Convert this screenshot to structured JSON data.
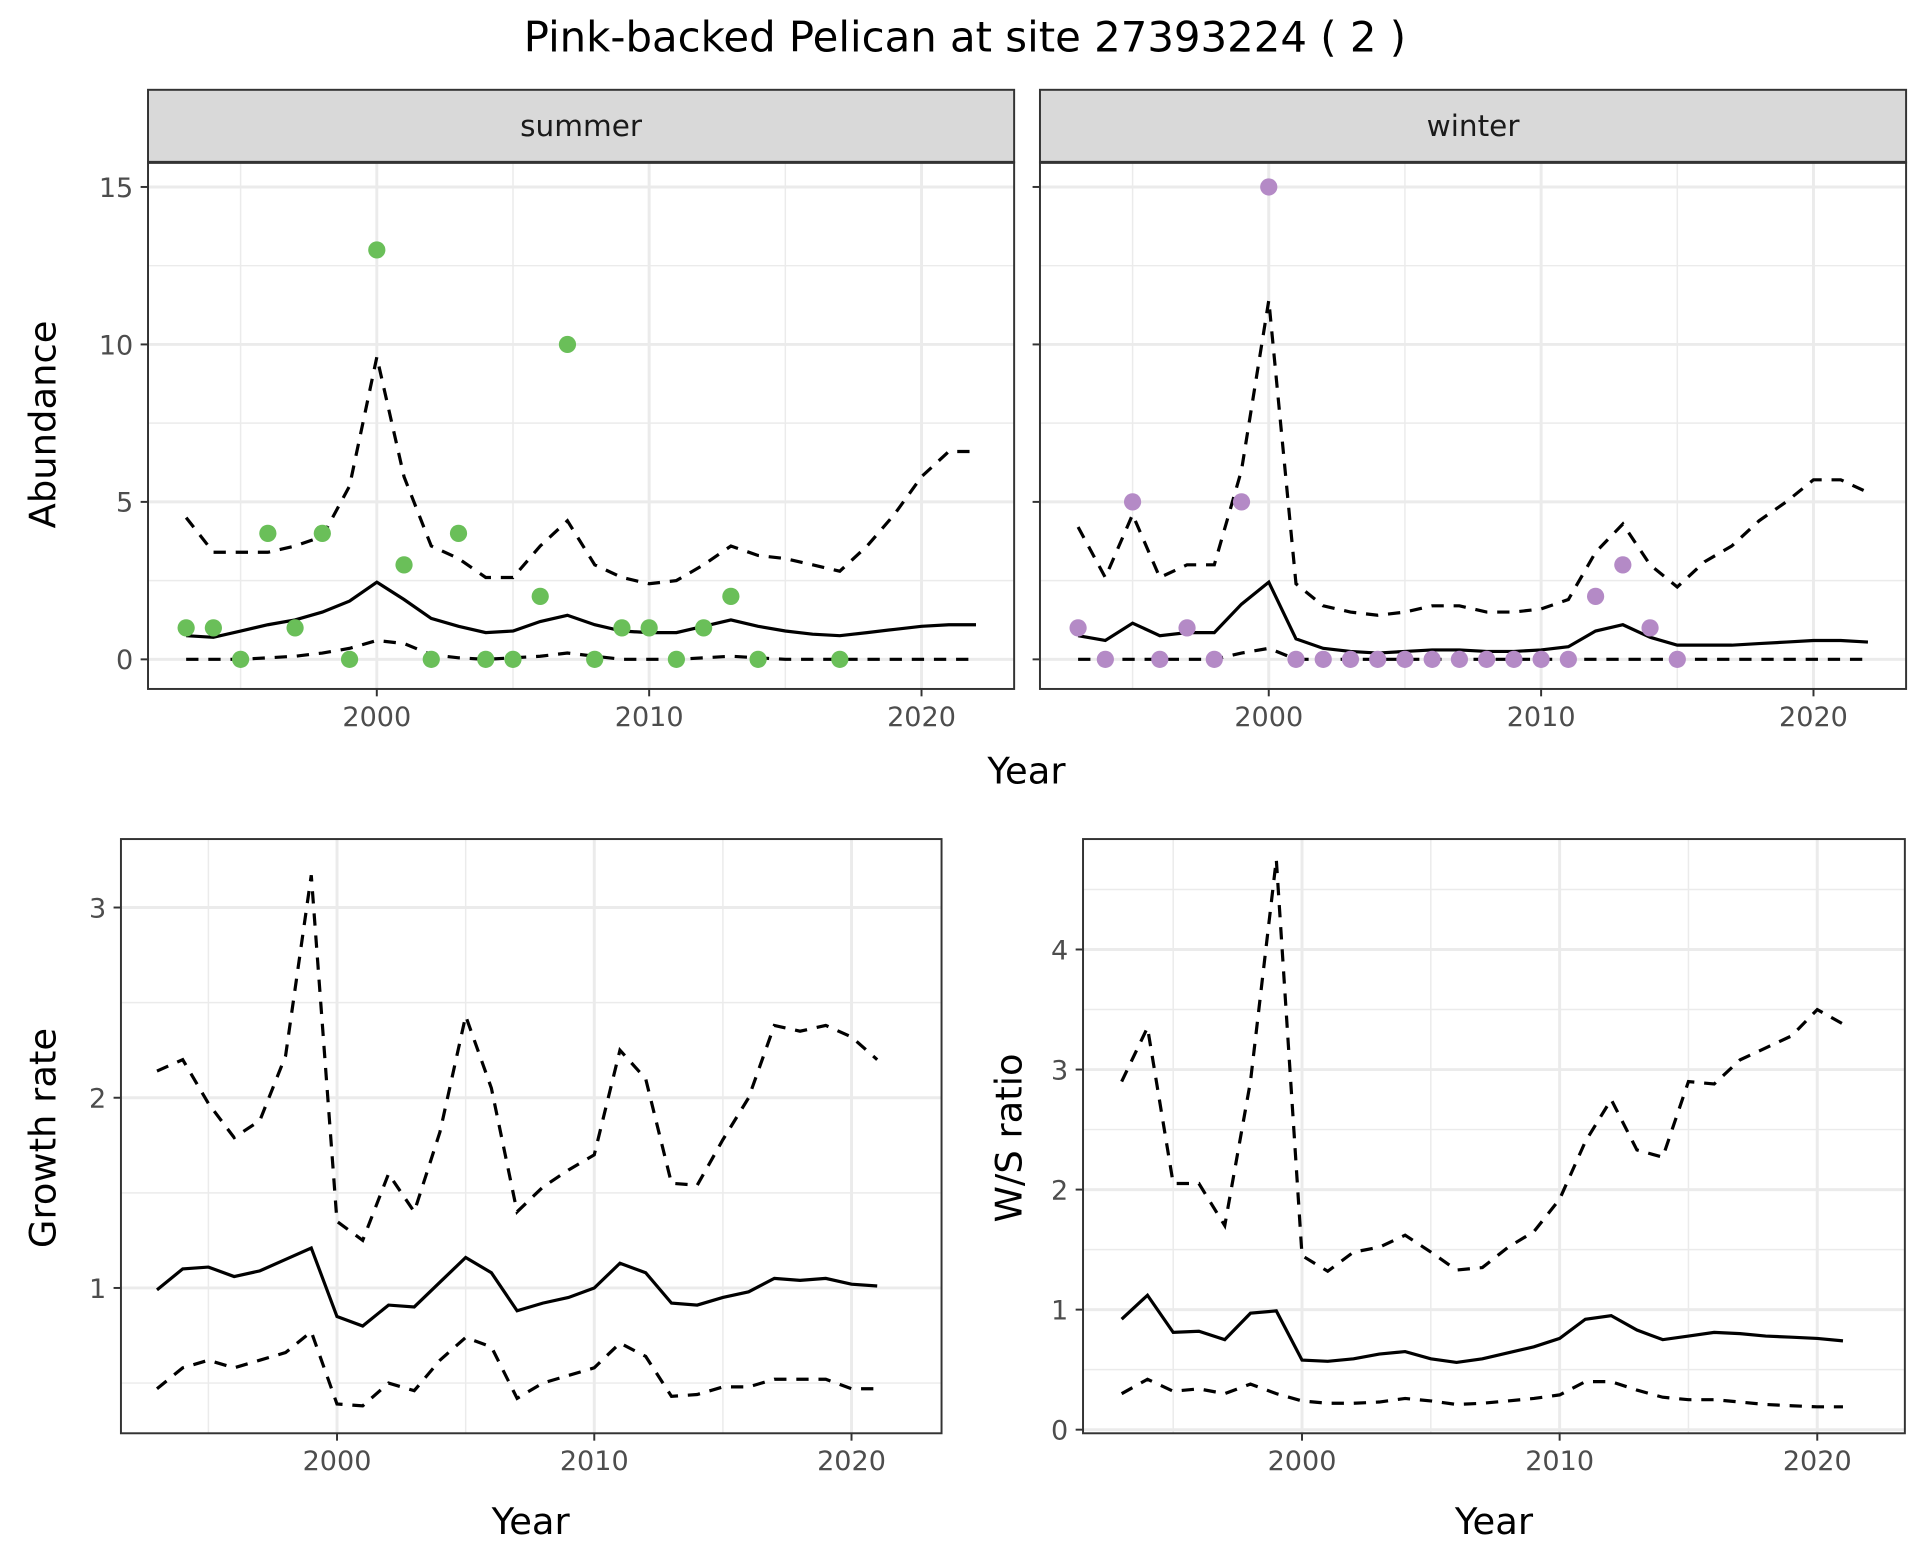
{
  "title": "Pink-backed Pelican at site 27393224 ( 2 )",
  "colors": {
    "summer": "#6abf59",
    "winter": "#b48ac6",
    "line": "#000000",
    "strip_bg": "#d9d9d9",
    "grid": "#ebebeb"
  },
  "chart_data": [
    {
      "type": "line+scatter",
      "facet": "summer",
      "xlabel": "Year",
      "ylabel": "Abundance",
      "xlim": [
        1991.6,
        2023.4
      ],
      "ylim": [
        -0.94,
        15.78
      ],
      "xticks": [
        "2000",
        "2010",
        "2020"
      ],
      "yticks": [
        "0",
        "5",
        "10",
        "15"
      ],
      "grid": true,
      "points": {
        "x": [
          1993,
          1994,
          1995,
          1996,
          1997,
          1998,
          1999,
          2000,
          2001,
          2002,
          2003,
          2004,
          2005,
          2006,
          2007,
          2008,
          2009,
          2010,
          2011,
          2012,
          2013,
          2014,
          2017
        ],
        "y": [
          1,
          1,
          0,
          4,
          1,
          4,
          0,
          13,
          3,
          0,
          4,
          0,
          0,
          2,
          10,
          0,
          1,
          1,
          0,
          1,
          2,
          0,
          0
        ]
      },
      "x": [
        1993,
        1994,
        1995,
        1996,
        1997,
        1998,
        1999,
        2000,
        2001,
        2002,
        2003,
        2004,
        2005,
        2006,
        2007,
        2008,
        2009,
        2010,
        2011,
        2012,
        2013,
        2014,
        2015,
        2016,
        2017,
        2018,
        2019,
        2020,
        2021,
        2022
      ],
      "mean": [
        0.75,
        0.7,
        0.9,
        1.1,
        1.25,
        1.5,
        1.85,
        2.45,
        1.9,
        1.3,
        1.05,
        0.85,
        0.9,
        1.2,
        1.4,
        1.1,
        0.9,
        0.85,
        0.85,
        1.05,
        1.25,
        1.05,
        0.9,
        0.8,
        0.75,
        0.85,
        0.95,
        1.05,
        1.1,
        1.1
      ],
      "upper": [
        4.5,
        3.4,
        3.4,
        3.4,
        3.6,
        3.9,
        5.5,
        9.6,
        5.8,
        3.6,
        3.2,
        2.6,
        2.6,
        3.6,
        4.4,
        3.0,
        2.6,
        2.4,
        2.5,
        3.0,
        3.6,
        3.3,
        3.2,
        3.0,
        2.8,
        3.6,
        4.6,
        5.8,
        6.6,
        6.6
      ],
      "lower": [
        0,
        0,
        0,
        0.05,
        0.1,
        0.2,
        0.35,
        0.6,
        0.5,
        0.15,
        0.05,
        0,
        0.05,
        0.1,
        0.2,
        0.1,
        0,
        0,
        0,
        0.05,
        0.1,
        0.05,
        0,
        0,
        0,
        0,
        0,
        0,
        0,
        0
      ]
    },
    {
      "type": "line+scatter",
      "facet": "winter",
      "xlabel": "Year",
      "ylabel": "Abundance",
      "xlim": [
        1991.6,
        2023.4
      ],
      "ylim": [
        -0.94,
        15.78
      ],
      "xticks": [
        "2000",
        "2010",
        "2020"
      ],
      "yticks": [],
      "grid": true,
      "points": {
        "x": [
          1993,
          1994,
          1995,
          1996,
          1997,
          1998,
          1999,
          2000,
          2001,
          2002,
          2003,
          2004,
          2005,
          2006,
          2007,
          2008,
          2009,
          2010,
          2011,
          2012,
          2013,
          2014,
          2015
        ],
        "y": [
          1,
          0,
          5,
          0,
          1,
          0,
          5,
          15,
          0,
          0,
          0,
          0,
          0,
          0,
          0,
          0,
          0,
          0,
          0,
          2,
          3,
          1,
          0
        ]
      },
      "x": [
        1993,
        1994,
        1995,
        1996,
        1997,
        1998,
        1999,
        2000,
        2001,
        2002,
        2003,
        2004,
        2005,
        2006,
        2007,
        2008,
        2009,
        2010,
        2011,
        2012,
        2013,
        2014,
        2015,
        2016,
        2017,
        2018,
        2019,
        2020,
        2021,
        2022
      ],
      "mean": [
        0.75,
        0.6,
        1.15,
        0.75,
        0.85,
        0.85,
        1.75,
        2.45,
        0.65,
        0.35,
        0.25,
        0.2,
        0.25,
        0.3,
        0.3,
        0.25,
        0.25,
        0.3,
        0.4,
        0.9,
        1.1,
        0.7,
        0.45,
        0.45,
        0.45,
        0.5,
        0.55,
        0.6,
        0.6,
        0.55
      ],
      "upper": [
        4.2,
        2.6,
        4.6,
        2.6,
        3.0,
        3.0,
        6.0,
        11.4,
        2.4,
        1.7,
        1.5,
        1.4,
        1.5,
        1.7,
        1.7,
        1.5,
        1.5,
        1.6,
        1.9,
        3.4,
        4.3,
        3.0,
        2.3,
        3.1,
        3.6,
        4.4,
        5.0,
        5.7,
        5.7,
        5.3
      ],
      "lower": [
        0,
        0,
        0,
        0,
        0,
        0,
        0.2,
        0.35,
        0,
        0,
        0,
        0,
        0,
        0,
        0,
        0,
        0,
        0,
        0,
        0,
        0,
        0,
        0,
        0,
        0,
        0,
        0,
        0,
        0,
        0
      ]
    },
    {
      "type": "line",
      "xlabel": "Year",
      "ylabel": "Growth rate",
      "xlim": [
        1991.6,
        2023.5
      ],
      "ylim": [
        0.236,
        3.36
      ],
      "xticks": [
        "2000",
        "2010",
        "2020"
      ],
      "yticks": [
        "1",
        "2",
        "3"
      ],
      "grid": true,
      "x": [
        1993,
        1994,
        1995,
        1996,
        1997,
        1998,
        1999,
        2000,
        2001,
        2002,
        2003,
        2004,
        2005,
        2006,
        2007,
        2008,
        2009,
        2010,
        2011,
        2012,
        2013,
        2014,
        2015,
        2016,
        2017,
        2018,
        2019,
        2020,
        2021
      ],
      "mean": [
        0.99,
        1.1,
        1.11,
        1.06,
        1.09,
        1.15,
        1.21,
        0.85,
        0.8,
        0.91,
        0.9,
        1.03,
        1.16,
        1.08,
        0.88,
        0.92,
        0.95,
        1.0,
        1.13,
        1.08,
        0.92,
        0.91,
        0.95,
        0.98,
        1.05,
        1.04,
        1.05,
        1.02,
        1.01
      ],
      "upper": [
        2.14,
        2.2,
        1.97,
        1.79,
        1.88,
        2.22,
        3.17,
        1.35,
        1.25,
        1.6,
        1.4,
        1.82,
        2.43,
        2.05,
        1.4,
        1.53,
        1.62,
        1.7,
        2.25,
        2.1,
        1.55,
        1.54,
        1.78,
        2.0,
        2.38,
        2.35,
        2.38,
        2.32,
        2.2
      ],
      "lower": [
        0.47,
        0.58,
        0.62,
        0.58,
        0.62,
        0.66,
        0.77,
        0.39,
        0.38,
        0.5,
        0.46,
        0.62,
        0.74,
        0.69,
        0.42,
        0.5,
        0.54,
        0.58,
        0.71,
        0.64,
        0.43,
        0.44,
        0.48,
        0.48,
        0.52,
        0.52,
        0.52,
        0.47,
        0.47
      ]
    },
    {
      "type": "line",
      "xlabel": "Year",
      "ylabel": "W/S ratio",
      "xlim": [
        1991.5,
        2023.4
      ],
      "ylim": [
        -0.03,
        4.92
      ],
      "xticks": [
        "2000",
        "2010",
        "2020"
      ],
      "yticks": [
        "0",
        "1",
        "2",
        "3",
        "4"
      ],
      "grid": true,
      "x": [
        1993,
        1994,
        1995,
        1996,
        1997,
        1998,
        1999,
        2000,
        2001,
        2002,
        2003,
        2004,
        2005,
        2006,
        2007,
        2008,
        2009,
        2010,
        2011,
        2012,
        2013,
        2014,
        2015,
        2016,
        2017,
        2018,
        2019,
        2020,
        2021
      ],
      "mean": [
        0.92,
        1.12,
        0.81,
        0.82,
        0.75,
        0.97,
        0.99,
        0.58,
        0.57,
        0.59,
        0.63,
        0.65,
        0.59,
        0.56,
        0.59,
        0.64,
        0.69,
        0.76,
        0.92,
        0.95,
        0.83,
        0.75,
        0.78,
        0.81,
        0.8,
        0.78,
        0.77,
        0.76,
        0.74
      ],
      "upper": [
        2.9,
        3.35,
        2.05,
        2.05,
        1.7,
        2.9,
        4.75,
        1.45,
        1.32,
        1.48,
        1.52,
        1.62,
        1.48,
        1.33,
        1.35,
        1.52,
        1.65,
        1.92,
        2.4,
        2.75,
        2.33,
        2.27,
        2.9,
        2.88,
        3.08,
        3.18,
        3.28,
        3.5,
        3.38
      ],
      "lower": [
        0.3,
        0.42,
        0.32,
        0.34,
        0.3,
        0.38,
        0.3,
        0.24,
        0.22,
        0.22,
        0.23,
        0.26,
        0.24,
        0.21,
        0.22,
        0.24,
        0.26,
        0.29,
        0.4,
        0.4,
        0.33,
        0.27,
        0.25,
        0.25,
        0.23,
        0.21,
        0.2,
        0.19,
        0.19
      ]
    }
  ]
}
